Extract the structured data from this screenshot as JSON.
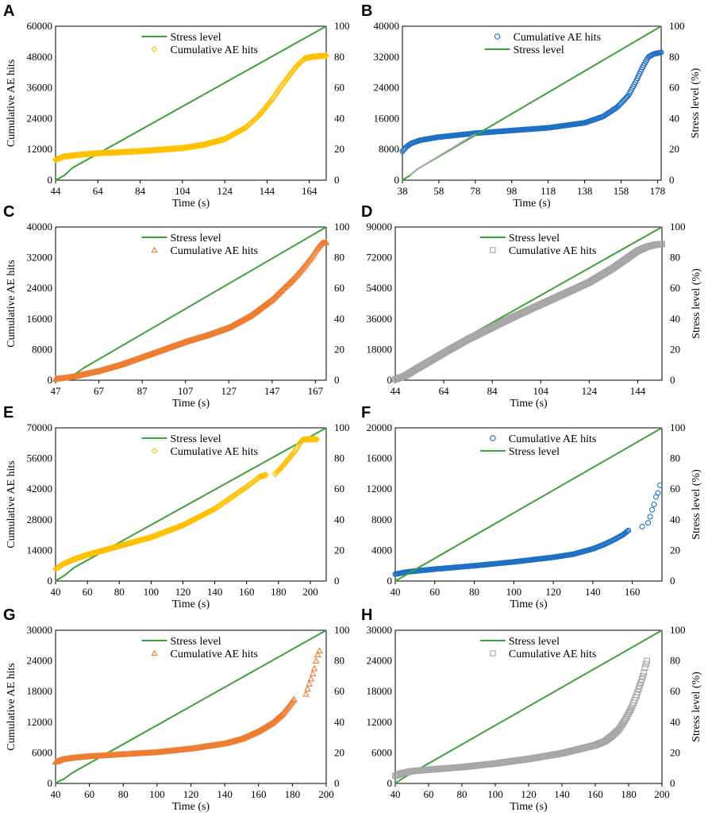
{
  "figure": {
    "colors": {
      "stress": "#3aa335",
      "yellow": "#ffc000",
      "blue": "#1f6fc5",
      "orange": "#ed7d31",
      "gray": "#a6a6a6",
      "frame": "#000000"
    }
  },
  "chart_data": [
    {
      "panel": "A",
      "type": "line",
      "xlabel": "Time (s)",
      "ylabel": "Cumulative AE hits",
      "y2label": "",
      "xlim": [
        44,
        172
      ],
      "xticks": [
        44,
        64,
        84,
        104,
        124,
        144,
        164
      ],
      "ylim": [
        0,
        60000
      ],
      "yticks": [
        0,
        12000,
        24000,
        36000,
        48000,
        60000
      ],
      "y2lim": [
        0,
        100
      ],
      "y2ticks": [
        0,
        20,
        40,
        60,
        80,
        100
      ],
      "legend_order": [
        "stress",
        "ae"
      ],
      "series": [
        {
          "key": "stress",
          "name": "Stress level",
          "axis": "y2",
          "style": "line",
          "color": "stress",
          "x": [
            44,
            46,
            48,
            52,
            172
          ],
          "y": [
            0,
            1.5,
            3,
            8,
            100
          ]
        },
        {
          "key": "ae",
          "name": "Cumulative AE hits",
          "axis": "y1",
          "style": "dense-diamond",
          "color": "yellow",
          "x": [
            44,
            48,
            54,
            64,
            84,
            104,
            114,
            124,
            134,
            140,
            146,
            152,
            158,
            162,
            165,
            168,
            172
          ],
          "y": [
            8000,
            9200,
            9800,
            10500,
            11300,
            12500,
            13800,
            16000,
            20500,
            25000,
            31000,
            38000,
            44500,
            47500,
            48000,
            48300,
            48500
          ]
        }
      ]
    },
    {
      "panel": "B",
      "type": "line",
      "xlabel": "Time (s)",
      "ylabel": "",
      "y2label": "Stress level (%)",
      "xlim": [
        38,
        180
      ],
      "xticks": [
        38,
        58,
        78,
        98,
        118,
        138,
        158,
        178
      ],
      "ylim": [
        0,
        40000
      ],
      "yticks": [
        0,
        8000,
        16000,
        24000,
        32000,
        40000
      ],
      "y2lim": [
        0,
        100
      ],
      "y2ticks": [
        0,
        20,
        40,
        60,
        80,
        100
      ],
      "legend_order": [
        "ae",
        "stress"
      ],
      "series": [
        {
          "key": "ae",
          "name": "Cumulative AE hits",
          "axis": "y1",
          "style": "dense-circle",
          "color": "blue",
          "x": [
            38,
            40,
            43,
            48,
            58,
            78,
            98,
            118,
            138,
            148,
            156,
            162,
            166,
            170,
            173,
            176,
            180
          ],
          "y": [
            7500,
            8600,
            9600,
            10400,
            11200,
            12200,
            12900,
            13600,
            14900,
            16500,
            19000,
            22000,
            25500,
            29500,
            32000,
            32800,
            33200
          ]
        },
        {
          "key": "stress",
          "name": "Stress level",
          "axis": "y2",
          "style": "line",
          "color": "stress",
          "x": [
            38,
            40,
            42,
            46,
            180
          ],
          "y": [
            0,
            1.5,
            3,
            7,
            100
          ]
        },
        {
          "key": "stress-overlay",
          "name": "",
          "axis": "y2",
          "style": "line",
          "color": "gray",
          "x": [
            42,
            46,
            78
          ],
          "y": [
            3,
            7,
            30
          ]
        }
      ]
    },
    {
      "panel": "C",
      "type": "line",
      "xlabel": "Time (s)",
      "ylabel": "Cumulative AE hits",
      "y2label": "",
      "xlim": [
        47,
        172
      ],
      "xticks": [
        47,
        67,
        87,
        107,
        127,
        147,
        167
      ],
      "ylim": [
        0,
        40000
      ],
      "yticks": [
        0,
        8000,
        16000,
        24000,
        32000,
        40000
      ],
      "y2lim": [
        0,
        100
      ],
      "y2ticks": [
        0,
        20,
        40,
        60,
        80,
        100
      ],
      "legend_order": [
        "stress",
        "ae"
      ],
      "series": [
        {
          "key": "stress",
          "name": "Stress level",
          "axis": "y2",
          "style": "line",
          "color": "stress",
          "x": [
            47,
            52,
            55,
            60,
            172
          ],
          "y": [
            0,
            1.5,
            3,
            8,
            100
          ]
        },
        {
          "key": "ae",
          "name": "Cumulative AE hits",
          "axis": "y1",
          "style": "dense-triangle",
          "color": "orange",
          "x": [
            47,
            55,
            67,
            77,
            87,
            97,
            107,
            117,
            127,
            137,
            147,
            152,
            157,
            162,
            165,
            168,
            170,
            172
          ],
          "y": [
            300,
            900,
            2400,
            4000,
            6000,
            8000,
            10000,
            11700,
            13700,
            16800,
            21000,
            23800,
            26500,
            29800,
            32000,
            34500,
            35800,
            36000
          ]
        }
      ]
    },
    {
      "panel": "D",
      "type": "line",
      "xlabel": "Time (s)",
      "ylabel": "",
      "y2label": "Stress level (%)",
      "xlim": [
        44,
        154
      ],
      "xticks": [
        44,
        64,
        84,
        104,
        124,
        144
      ],
      "ylim": [
        0,
        90000
      ],
      "yticks": [
        0,
        18000,
        36000,
        54000,
        72000,
        90000
      ],
      "y2lim": [
        0,
        100
      ],
      "y2ticks": [
        0,
        20,
        40,
        60,
        80,
        100
      ],
      "legend_order": [
        "stress",
        "ae"
      ],
      "series": [
        {
          "key": "stress",
          "name": "Stress level",
          "axis": "y2",
          "style": "line",
          "color": "stress",
          "x": [
            44,
            49,
            52,
            154
          ],
          "y": [
            0,
            4,
            9,
            100
          ]
        },
        {
          "key": "ae",
          "name": "Cumulative AE hits",
          "axis": "y1",
          "style": "dense-square",
          "color": "gray",
          "x": [
            44,
            48,
            52,
            58,
            64,
            74,
            84,
            94,
            104,
            114,
            124,
            134,
            140,
            144,
            148,
            152,
            154
          ],
          "y": [
            500,
            2500,
            6000,
            11000,
            16000,
            24000,
            31000,
            38000,
            44500,
            51000,
            57500,
            66000,
            72000,
            76000,
            78500,
            79800,
            80000
          ]
        }
      ]
    },
    {
      "panel": "E",
      "type": "line",
      "xlabel": "Time (s)",
      "ylabel": "Cumulative AE hits",
      "y2label": "",
      "xlim": [
        40,
        210
      ],
      "xticks": [
        40,
        60,
        80,
        100,
        120,
        140,
        160,
        180,
        200
      ],
      "ylim": [
        0,
        70000
      ],
      "yticks": [
        0,
        14000,
        28000,
        42000,
        56000,
        70000
      ],
      "y2lim": [
        0,
        100
      ],
      "y2ticks": [
        0,
        20,
        40,
        60,
        80,
        100
      ],
      "legend_order": [
        "stress",
        "ae"
      ],
      "series": [
        {
          "key": "stress",
          "name": "Stress level",
          "axis": "y2",
          "style": "line",
          "color": "stress",
          "x": [
            40,
            43,
            46,
            52,
            210
          ],
          "y": [
            0,
            2,
            4,
            9,
            100
          ]
        },
        {
          "key": "ae",
          "name": "Cumulative AE hits",
          "axis": "y1",
          "style": "dense-diamond",
          "color": "yellow",
          "x": [
            40,
            45,
            50,
            60,
            70,
            80,
            100,
            120,
            140,
            150,
            160,
            168,
            172
          ],
          "y": [
            5500,
            7800,
            9500,
            12000,
            14000,
            16000,
            20000,
            25500,
            33000,
            38000,
            43000,
            47500,
            48500
          ]
        },
        {
          "key": "ae-b",
          "name": "",
          "axis": "y1",
          "style": "dense-diamond",
          "color": "yellow",
          "x": [
            178,
            182,
            186,
            190,
            193,
            195,
            198,
            201,
            204
          ],
          "y": [
            49000,
            52000,
            55500,
            59000,
            62500,
            64500,
            64800,
            64800,
            64800
          ]
        }
      ]
    },
    {
      "panel": "F",
      "type": "line",
      "xlabel": "Time (s)",
      "ylabel": "",
      "y2label": "Stress level  (%)",
      "xlim": [
        40,
        175
      ],
      "xticks": [
        40,
        60,
        80,
        100,
        120,
        140,
        160
      ],
      "ylim": [
        0,
        20000
      ],
      "yticks": [
        0,
        4000,
        8000,
        12000,
        16000,
        20000
      ],
      "y2lim": [
        0,
        100
      ],
      "y2ticks": [
        0,
        20,
        40,
        60,
        80,
        100
      ],
      "legend_order": [
        "ae",
        "stress"
      ],
      "series": [
        {
          "key": "ae",
          "name": "Cumulative AE hits",
          "axis": "y1",
          "style": "dense-circle",
          "color": "blue",
          "x": [
            40,
            45,
            50,
            60,
            80,
            100,
            120,
            130,
            140,
            145,
            150,
            155,
            158
          ],
          "y": [
            900,
            1150,
            1300,
            1550,
            2000,
            2500,
            3100,
            3500,
            4200,
            4700,
            5300,
            6000,
            6600
          ]
        },
        {
          "key": "ae-b",
          "name": "",
          "axis": "y1",
          "style": "sparse-circle",
          "color": "blue",
          "x": [
            165,
            168,
            169,
            170,
            171,
            172,
            173,
            174
          ],
          "y": [
            7100,
            7600,
            8400,
            9300,
            10000,
            11000,
            11500,
            12500
          ]
        },
        {
          "key": "stress",
          "name": "Stress level",
          "axis": "y2",
          "style": "line",
          "color": "stress",
          "x": [
            40,
            42,
            44,
            175
          ],
          "y": [
            0,
            1.5,
            3,
            100
          ]
        }
      ]
    },
    {
      "panel": "G",
      "type": "line",
      "xlabel": "Time (s)",
      "ylabel": "Cumulative AE hits",
      "y2label": "",
      "xlim": [
        40,
        200
      ],
      "xticks": [
        40,
        60,
        80,
        100,
        120,
        140,
        160,
        180,
        200
      ],
      "ylim": [
        0,
        30000
      ],
      "yticks": [
        0,
        6000,
        12000,
        18000,
        24000,
        30000
      ],
      "y2lim": [
        0,
        100
      ],
      "y2ticks": [
        0,
        20,
        40,
        60,
        80,
        100
      ],
      "legend_order": [
        "stress",
        "ae"
      ],
      "series": [
        {
          "key": "stress",
          "name": "Stress level",
          "axis": "y2",
          "style": "line",
          "color": "stress",
          "x": [
            40,
            42,
            45,
            50,
            200
          ],
          "y": [
            0,
            1.5,
            3,
            7,
            100
          ]
        },
        {
          "key": "ae",
          "name": "Cumulative AE hits",
          "axis": "y1",
          "style": "dense-triangle",
          "color": "orange",
          "x": [
            40,
            44,
            50,
            60,
            80,
            100,
            120,
            140,
            150,
            160,
            168,
            174,
            178,
            181
          ],
          "y": [
            4200,
            4700,
            5000,
            5300,
            5700,
            6100,
            6800,
            7800,
            8700,
            10200,
            11800,
            13500,
            15200,
            16500
          ]
        },
        {
          "key": "ae-b",
          "name": "",
          "axis": "y1",
          "style": "sparse-triangle",
          "color": "orange",
          "x": [
            188,
            189,
            190,
            191,
            192,
            193,
            194,
            195,
            196
          ],
          "y": [
            17500,
            18500,
            19500,
            20500,
            21500,
            22500,
            24000,
            25200,
            26000
          ]
        }
      ]
    },
    {
      "panel": "H",
      "type": "line",
      "xlabel": "Time (s)",
      "ylabel": "",
      "y2label": "Stress level  (%)",
      "xlim": [
        40,
        200
      ],
      "xticks": [
        40,
        60,
        80,
        100,
        120,
        140,
        160,
        180,
        200
      ],
      "ylim": [
        0,
        30000
      ],
      "yticks": [
        0,
        6000,
        12000,
        18000,
        24000,
        30000
      ],
      "y2lim": [
        0,
        100
      ],
      "y2ticks": [
        0,
        20,
        40,
        60,
        80,
        100
      ],
      "legend_order": [
        "stress",
        "ae"
      ],
      "series": [
        {
          "key": "stress",
          "name": "Stress level",
          "axis": "y2",
          "style": "line",
          "color": "stress",
          "x": [
            40,
            42,
            44,
            47,
            200
          ],
          "y": [
            0,
            1.5,
            3,
            5,
            100
          ]
        },
        {
          "key": "ae",
          "name": "Cumulative AE hits",
          "axis": "y1",
          "style": "dense-square",
          "color": "gray",
          "x": [
            40,
            44,
            50,
            60,
            80,
            100,
            120,
            140,
            160,
            166,
            170,
            174,
            178,
            182,
            185,
            187,
            189,
            190,
            191
          ],
          "y": [
            1500,
            2000,
            2400,
            2700,
            3200,
            3900,
            4800,
            5900,
            7500,
            8300,
            9300,
            10500,
            12500,
            15000,
            17500,
            19500,
            21500,
            23000,
            24000
          ]
        }
      ]
    }
  ]
}
